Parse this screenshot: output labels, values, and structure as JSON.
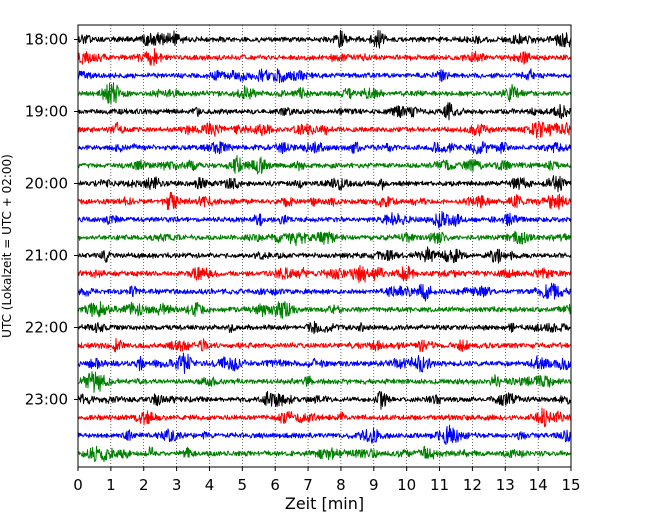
{
  "chart_data": {
    "type": "line",
    "title": "",
    "xlabel": "Zeit  [min]",
    "ylabel": "UTC (Lokalzeit = UTC + 02:00)",
    "xlim": [
      0,
      15
    ],
    "x_ticks": [
      "0",
      "1",
      "2",
      "3",
      "4",
      "5",
      "6",
      "7",
      "8",
      "9",
      "10",
      "11",
      "12",
      "13",
      "14",
      "15"
    ],
    "y_tick_labels": [
      "18:00",
      "19:00",
      "20:00",
      "21:00",
      "22:00",
      "23:00"
    ],
    "row_interval_minutes": 15,
    "rows_per_hour": 4,
    "row_count": 24,
    "first_row_time": "18:00",
    "grid": "vertical dotted lines at each minute",
    "trace_colors": [
      "#000000",
      "#ff0000",
      "#0000ff",
      "#008000"
    ],
    "color_cycle": "black, red, blue, green (repeating per 15-minute row)",
    "legend": "none"
  }
}
